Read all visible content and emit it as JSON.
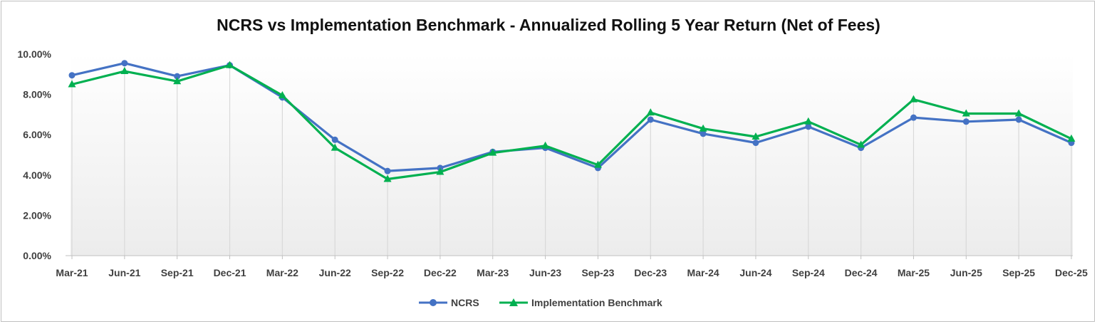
{
  "chart_data": {
    "type": "line",
    "title": "NCRS vs Implementation Benchmark - Annualized Rolling 5 Year Return (Net of Fees)",
    "xlabel": "",
    "ylabel": "",
    "ylim": [
      0,
      10
    ],
    "y_tick_labels": [
      "0.00%",
      "2.00%",
      "4.00%",
      "6.00%",
      "8.00%",
      "10.00%"
    ],
    "y_ticks": [
      0,
      2,
      4,
      6,
      8,
      10
    ],
    "categories": [
      "Mar-21",
      "Jun-21",
      "Sep-21",
      "Dec-21",
      "Mar-22",
      "Jun-22",
      "Sep-22",
      "Dec-22",
      "Mar-23",
      "Jun-23",
      "Sep-23",
      "Dec-23",
      "Mar-24",
      "Jun-24",
      "Sep-24",
      "Dec-24",
      "Mar-25",
      "Jun-25",
      "Sep-25",
      "Dec-25"
    ],
    "series": [
      {
        "name": "NCRS",
        "color": "#4472c4",
        "marker": "circle",
        "values": [
          8.95,
          9.55,
          8.9,
          9.45,
          7.85,
          5.75,
          4.2,
          4.35,
          5.15,
          5.35,
          4.35,
          6.75,
          6.05,
          5.6,
          6.4,
          5.35,
          6.85,
          6.65,
          6.75,
          5.6
        ]
      },
      {
        "name": "Implementation Benchmark",
        "color": "#00b050",
        "marker": "triangle",
        "values": [
          8.5,
          9.15,
          8.65,
          9.45,
          7.95,
          5.35,
          3.8,
          4.15,
          5.1,
          5.45,
          4.5,
          7.1,
          6.3,
          5.9,
          6.65,
          5.5,
          7.75,
          7.05,
          7.05,
          5.8
        ]
      }
    ],
    "grid": "vertical drop lines",
    "legend_position": "bottom"
  }
}
